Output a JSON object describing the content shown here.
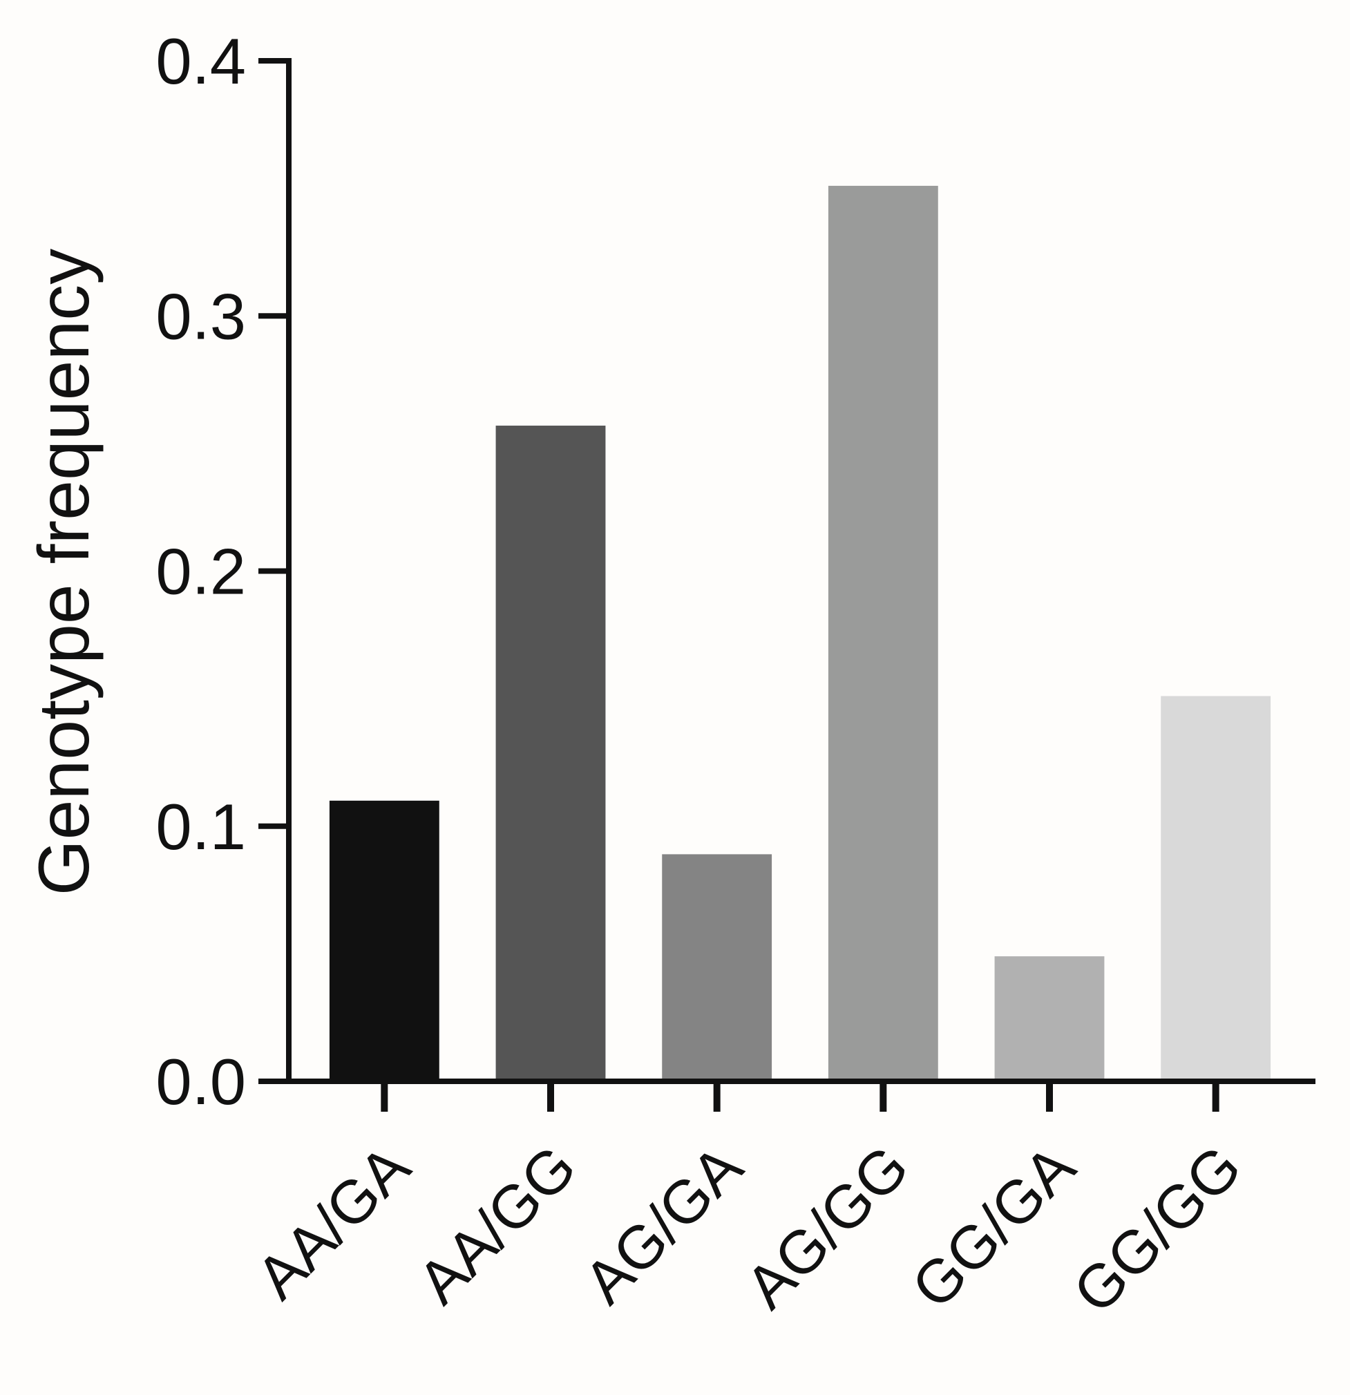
{
  "chart_data": {
    "type": "bar",
    "title": "",
    "xlabel": "",
    "ylabel": "Genotype frequency",
    "ylim": [
      0,
      0.4
    ],
    "yticks": [
      {
        "value": 0.0,
        "label": "0.0"
      },
      {
        "value": 0.1,
        "label": "0.1"
      },
      {
        "value": 0.2,
        "label": "0.2"
      },
      {
        "value": 0.3,
        "label": "0.3"
      },
      {
        "value": 0.4,
        "label": "0.4"
      }
    ],
    "categories": [
      "AA/GA",
      "AA/GG",
      "AG/GA",
      "AG/GG",
      "GG/GA",
      "GG/GG"
    ],
    "values": [
      0.11,
      0.257,
      0.089,
      0.351,
      0.049,
      0.151
    ],
    "bar_colors": [
      "#111111",
      "#555555",
      "#848484",
      "#9a9b9a",
      "#b1b1b1",
      "#d9d9d9"
    ],
    "grid": false,
    "legend": "none"
  }
}
